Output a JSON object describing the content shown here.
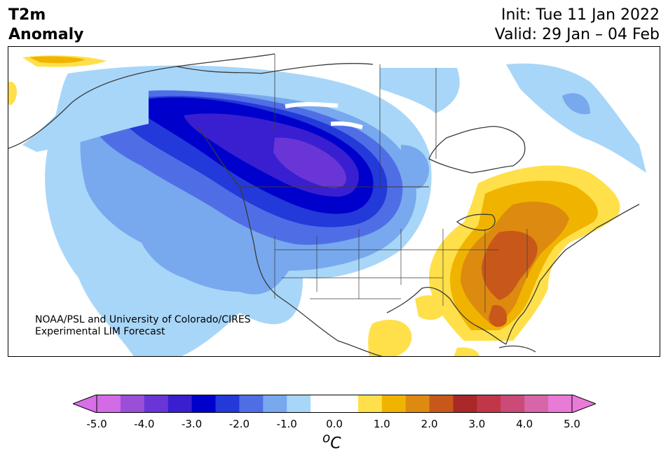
{
  "title": {
    "line1": "T2m",
    "line2": "Anomaly"
  },
  "forecast": {
    "init": "Init: Tue 11 Jan 2022",
    "valid": "Valid: 29 Jan – 04 Feb"
  },
  "credit": {
    "line1": "NOAA/PSL and University of Colorado/CIRES",
    "line2": "Experimental LIM Forecast"
  },
  "colorbar": {
    "unit": "°C",
    "unit_base": "C",
    "unit_sup": "o",
    "tick_labels": [
      "-5.0",
      "-4.0",
      "-3.0",
      "-2.0",
      "-1.0",
      "0.0",
      "1.0",
      "2.0",
      "3.0",
      "4.0",
      "5.0"
    ],
    "min": -5.0,
    "max": 5.0,
    "under_color": "#d86ee8",
    "over_color": "#e87ad8",
    "colors": [
      "#d36be6",
      "#9b4fd9",
      "#6a35d7",
      "#3a1fd0",
      "#0000cc",
      "#2339d9",
      "#4f6ee6",
      "#78a8ee",
      "#a8d6f8",
      "#ffffff",
      "#ffffff",
      "#ffe04a",
      "#f0b400",
      "#dd8a10",
      "#c8581a",
      "#aa2828",
      "#c03848",
      "#cc4a78",
      "#d666a8",
      "#e87ad8"
    ]
  },
  "legend_colors": {
    "land": "#ffffff",
    "coast": "#3a3a3a",
    "water": "#ffffff"
  }
}
